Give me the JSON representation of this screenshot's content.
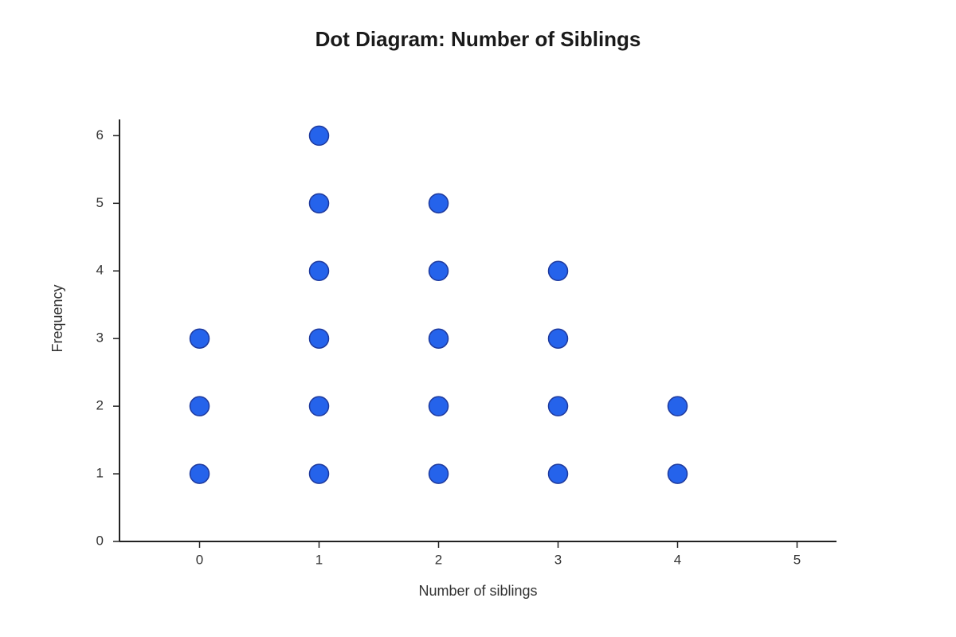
{
  "chart_data": {
    "type": "dot",
    "title": "Dot Diagram: Number of Siblings",
    "x_label": "Number of siblings",
    "y_label": "Frequency",
    "x": [
      0,
      1,
      2,
      3,
      4
    ],
    "values": [
      3,
      6,
      5,
      4,
      2
    ],
    "color": "#2563eb",
    "edge_color": "#1e3a9e",
    "xlim": [
      -0.67,
      5.33
    ],
    "xticks": [
      0,
      1,
      2,
      3,
      4,
      5
    ],
    "ylim": [
      0,
      6.24
    ],
    "yticks": [
      0,
      1,
      2,
      3,
      4,
      5,
      6
    ]
  }
}
